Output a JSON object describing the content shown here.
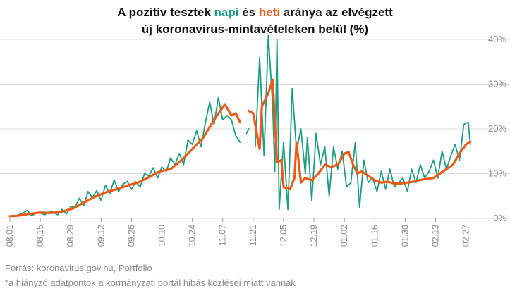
{
  "title": {
    "prefix": "A pozitív tesztek ",
    "napi": "napi",
    "middle": " és ",
    "heti": "heti",
    "suffix": " aránya az elvégzett",
    "line2": "új koronavírus-mintavételeken belül (%)"
  },
  "footer": {
    "source": "Forrás: koronavirus.gov.hu, Portfolio",
    "note": "*a hiányzó adatpontok a kormányzati portál hibás közlései miatt vannak"
  },
  "colors": {
    "napi": "#1a9e82",
    "heti": "#ee5a14",
    "grid": "#dcdcdc",
    "text": "#8a8a8a"
  },
  "chart_data": {
    "type": "line",
    "x_start": "2020-08-01",
    "x_end": "2021-03-04",
    "ylim": [
      0,
      40
    ],
    "y_ticks": [
      0,
      10,
      20,
      30,
      40
    ],
    "y_tick_labels": [
      "0%",
      "10%",
      "20%",
      "30%",
      "40%"
    ],
    "x_tick_labels": [
      "08.01",
      "08.15",
      "08.29",
      "09.12",
      "09.26",
      "10.10",
      "10.24",
      "11.07",
      "11.21",
      "12.05",
      "12.19",
      "01.02",
      "01.16",
      "01.30",
      "02.13",
      "02.27"
    ],
    "x_tick_dates": [
      "2020-08-01",
      "2020-08-15",
      "2020-08-29",
      "2020-09-12",
      "2020-09-26",
      "2020-10-10",
      "2020-10-24",
      "2020-11-07",
      "2020-11-21",
      "2020-12-05",
      "2020-12-19",
      "2021-01-02",
      "2021-01-16",
      "2021-01-30",
      "2021-02-13",
      "2021-02-27"
    ],
    "grid": "horizontal",
    "series": [
      {
        "name": "napi",
        "color": "#1a9e82",
        "points": [
          [
            "2020-08-01",
            0.5
          ],
          [
            "2020-08-04",
            0.6
          ],
          [
            "2020-08-07",
            1.2
          ],
          [
            "2020-08-09",
            1.8
          ],
          [
            "2020-08-11",
            0.6
          ],
          [
            "2020-08-14",
            1.4
          ],
          [
            "2020-08-17",
            0.8
          ],
          [
            "2020-08-20",
            1.6
          ],
          [
            "2020-08-23",
            0.8
          ],
          [
            "2020-08-25",
            2.0
          ],
          [
            "2020-08-27",
            1.0
          ],
          [
            "2020-08-29",
            2.6
          ],
          [
            "2020-08-31",
            2.5
          ],
          [
            "2020-09-02",
            4.5
          ],
          [
            "2020-09-04",
            2.8
          ],
          [
            "2020-09-06",
            6.0
          ],
          [
            "2020-09-08",
            4.6
          ],
          [
            "2020-09-10",
            6.2
          ],
          [
            "2020-09-12",
            4.0
          ],
          [
            "2020-09-14",
            7.4
          ],
          [
            "2020-09-16",
            5.5
          ],
          [
            "2020-09-18",
            8.6
          ],
          [
            "2020-09-20",
            6.0
          ],
          [
            "2020-09-22",
            7.6
          ],
          [
            "2020-09-24",
            8.3
          ],
          [
            "2020-09-26",
            6.5
          ],
          [
            "2020-09-28",
            8.2
          ],
          [
            "2020-09-30",
            7.0
          ],
          [
            "2020-10-02",
            10.0
          ],
          [
            "2020-10-04",
            9.5
          ],
          [
            "2020-10-06",
            11.3
          ],
          [
            "2020-10-08",
            9.0
          ],
          [
            "2020-10-10",
            11.5
          ],
          [
            "2020-10-12",
            10.5
          ],
          [
            "2020-10-14",
            13.5
          ],
          [
            "2020-10-16",
            12.0
          ],
          [
            "2020-10-18",
            14.5
          ],
          [
            "2020-10-20",
            12.0
          ],
          [
            "2020-10-22",
            17.5
          ],
          [
            "2020-10-24",
            16.5
          ],
          [
            "2020-10-26",
            19.6
          ],
          [
            "2020-10-28",
            16.0
          ],
          [
            "2020-10-30",
            21.3
          ],
          [
            "2020-11-01",
            26.0
          ],
          [
            "2020-11-03",
            21.0
          ],
          [
            "2020-11-05",
            27.0
          ],
          [
            "2020-11-07",
            22.0
          ],
          [
            "2020-11-09",
            23.0
          ],
          [
            "2020-11-11",
            22.0
          ],
          [
            "2020-11-13",
            18.5
          ],
          [
            "2020-11-15",
            17.0
          ],
          [
            "2020-11-17",
            null
          ],
          [
            "2020-11-18",
            19.0
          ],
          [
            "2020-11-19",
            20.0
          ],
          [
            "2020-11-20",
            null
          ],
          [
            "2020-11-22",
            16.0
          ],
          [
            "2020-11-24",
            36.0
          ],
          [
            "2020-11-26",
            14.0
          ],
          [
            "2020-11-28",
            41.0
          ],
          [
            "2020-11-30",
            25.0
          ],
          [
            "2020-12-01",
            10.5
          ],
          [
            "2020-12-02",
            40.0
          ],
          [
            "2020-12-03",
            2.0
          ],
          [
            "2020-12-05",
            17.0
          ],
          [
            "2020-12-07",
            2.0
          ],
          [
            "2020-12-09",
            29.0
          ],
          [
            "2020-12-11",
            15.0
          ],
          [
            "2020-12-13",
            20.0
          ],
          [
            "2020-12-15",
            10.0
          ],
          [
            "2020-12-16",
            18.0
          ],
          [
            "2020-12-18",
            4.0
          ],
          [
            "2020-12-20",
            19.0
          ],
          [
            "2020-12-22",
            12.0
          ],
          [
            "2020-12-24",
            16.0
          ],
          [
            "2020-12-26",
            5.0
          ],
          [
            "2020-12-28",
            16.0
          ],
          [
            "2020-12-30",
            11.0
          ],
          [
            "2021-01-01",
            15.0
          ],
          [
            "2021-01-03",
            7.0
          ],
          [
            "2021-01-05",
            8.0
          ],
          [
            "2021-01-07",
            17.0
          ],
          [
            "2021-01-09",
            2.5
          ],
          [
            "2021-01-11",
            13.0
          ],
          [
            "2021-01-13",
            8.0
          ],
          [
            "2021-01-15",
            9.0
          ],
          [
            "2021-01-17",
            6.0
          ],
          [
            "2021-01-19",
            10.5
          ],
          [
            "2021-01-21",
            6.5
          ],
          [
            "2021-01-23",
            11.0
          ],
          [
            "2021-01-25",
            7.0
          ],
          [
            "2021-01-27",
            8.0
          ],
          [
            "2021-01-29",
            9.0
          ],
          [
            "2021-01-31",
            6.0
          ],
          [
            "2021-02-02",
            11.0
          ],
          [
            "2021-02-04",
            8.0
          ],
          [
            "2021-02-06",
            12.0
          ],
          [
            "2021-02-08",
            9.0
          ],
          [
            "2021-02-10",
            10.5
          ],
          [
            "2021-02-12",
            13.0
          ],
          [
            "2021-02-14",
            9.0
          ],
          [
            "2021-02-16",
            15.0
          ],
          [
            "2021-02-18",
            11.0
          ],
          [
            "2021-02-20",
            14.0
          ],
          [
            "2021-02-22",
            16.5
          ],
          [
            "2021-02-24",
            13.0
          ],
          [
            "2021-02-26",
            21.0
          ],
          [
            "2021-02-28",
            21.5
          ],
          [
            "2021-03-01",
            16.5
          ]
        ]
      },
      {
        "name": "heti",
        "color": "#ee5a14",
        "points": [
          [
            "2020-08-01",
            0.5
          ],
          [
            "2020-08-05",
            0.6
          ],
          [
            "2020-08-10",
            1.0
          ],
          [
            "2020-08-15",
            1.3
          ],
          [
            "2020-08-20",
            1.2
          ],
          [
            "2020-08-25",
            1.5
          ],
          [
            "2020-08-30",
            2.2
          ],
          [
            "2020-09-04",
            3.5
          ],
          [
            "2020-09-09",
            4.8
          ],
          [
            "2020-09-14",
            5.8
          ],
          [
            "2020-09-19",
            6.5
          ],
          [
            "2020-09-24",
            7.3
          ],
          [
            "2020-09-29",
            8.0
          ],
          [
            "2020-10-04",
            9.2
          ],
          [
            "2020-10-09",
            10.5
          ],
          [
            "2020-10-14",
            11.0
          ],
          [
            "2020-10-19",
            13.0
          ],
          [
            "2020-10-24",
            15.5
          ],
          [
            "2020-10-29",
            18.0
          ],
          [
            "2020-11-03",
            22.0
          ],
          [
            "2020-11-08",
            25.5
          ],
          [
            "2020-11-11",
            23.0
          ],
          [
            "2020-11-13",
            23.5
          ],
          [
            "2020-11-15",
            21.5
          ],
          [
            "2020-11-17",
            null
          ],
          [
            "2020-11-19",
            24.0
          ],
          [
            "2020-11-21",
            23.5
          ],
          [
            "2020-11-24",
            15.5
          ],
          [
            "2020-11-25",
            25.0
          ],
          [
            "2020-11-28",
            28.0
          ],
          [
            "2020-11-30",
            31.0
          ],
          [
            "2020-12-02",
            12.5
          ],
          [
            "2020-12-04",
            13.0
          ],
          [
            "2020-12-05",
            7.0
          ],
          [
            "2020-12-08",
            6.5
          ],
          [
            "2020-12-10",
            9.0
          ],
          [
            "2020-12-11",
            17.0
          ],
          [
            "2020-12-13",
            8.0
          ],
          [
            "2020-12-15",
            9.0
          ],
          [
            "2020-12-18",
            8.5
          ],
          [
            "2020-12-21",
            10.0
          ],
          [
            "2020-12-24",
            12.0
          ],
          [
            "2020-12-27",
            11.5
          ],
          [
            "2020-12-30",
            12.0
          ],
          [
            "2021-01-02",
            14.5
          ],
          [
            "2021-01-04",
            14.8
          ],
          [
            "2021-01-06",
            12.0
          ],
          [
            "2021-01-08",
            10.0
          ],
          [
            "2021-01-10",
            10.5
          ],
          [
            "2021-01-13",
            9.5
          ],
          [
            "2021-01-16",
            8.5
          ],
          [
            "2021-01-19",
            8.0
          ],
          [
            "2021-01-22",
            8.2
          ],
          [
            "2021-01-25",
            7.8
          ],
          [
            "2021-01-28",
            7.8
          ],
          [
            "2021-01-31",
            8.0
          ],
          [
            "2021-02-03",
            8.2
          ],
          [
            "2021-02-06",
            8.6
          ],
          [
            "2021-02-09",
            8.8
          ],
          [
            "2021-02-12",
            9.0
          ],
          [
            "2021-02-15",
            10.0
          ],
          [
            "2021-02-18",
            11.0
          ],
          [
            "2021-02-21",
            12.0
          ],
          [
            "2021-02-24",
            14.5
          ],
          [
            "2021-02-27",
            16.5
          ],
          [
            "2021-03-01",
            17.2
          ]
        ]
      }
    ]
  }
}
